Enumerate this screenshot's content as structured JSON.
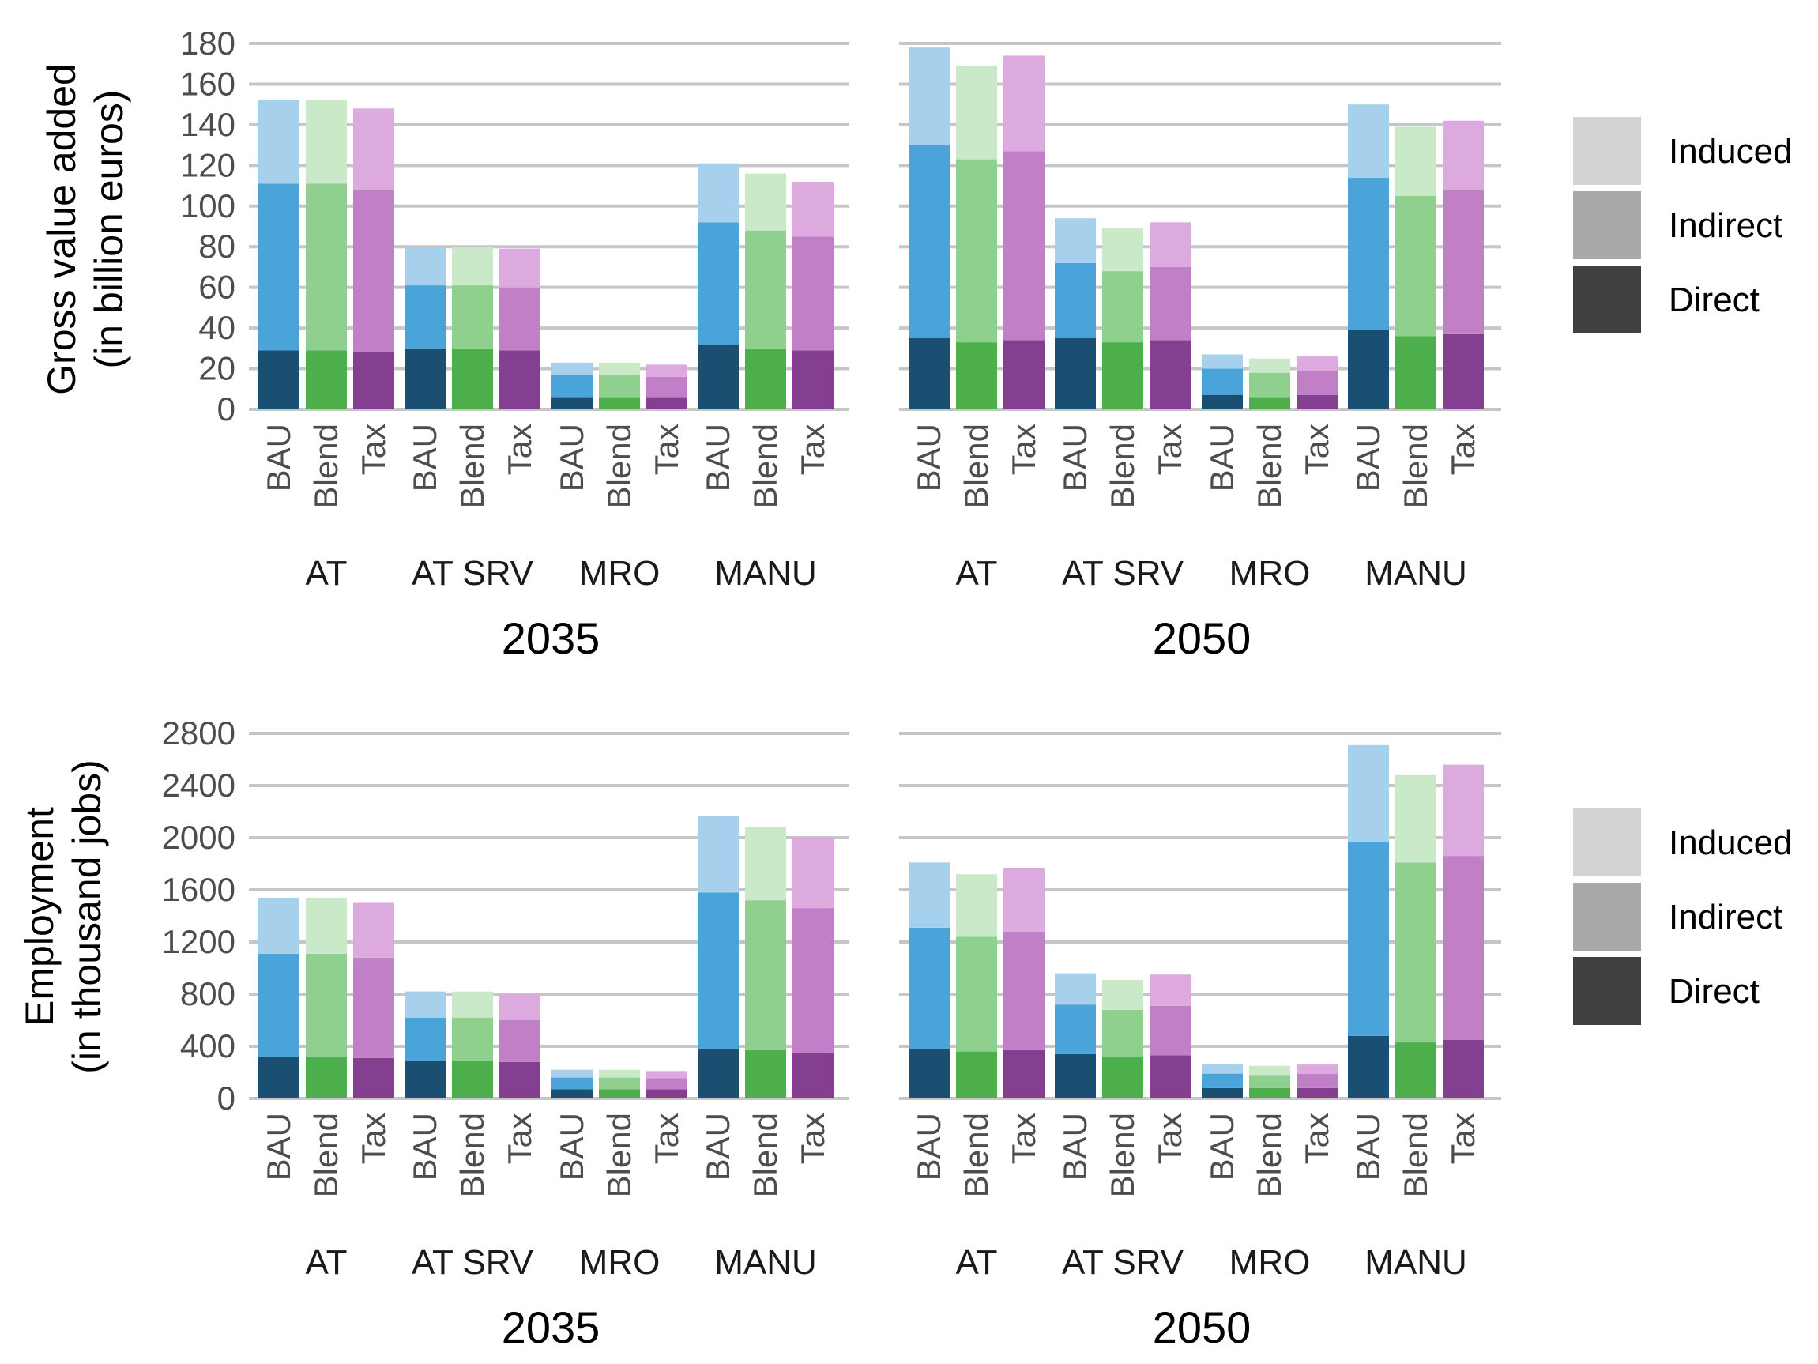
{
  "chart_data": [
    {
      "type": "bar",
      "title": "",
      "ylabel": "Gross value added",
      "ylabel_sub": "(in billion euros)",
      "ylim": [
        0,
        180
      ],
      "yticks": [
        0,
        20,
        40,
        60,
        80,
        100,
        120,
        140,
        160,
        180
      ],
      "components": [
        "Direct",
        "Indirect",
        "Induced"
      ],
      "scenarios": [
        "BAU",
        "Blend",
        "Tax"
      ],
      "categories": [
        "AT",
        "AT SRV",
        "MRO",
        "MANU"
      ],
      "panels": [
        {
          "year": "2035",
          "data": {
            "AT": {
              "BAU": [
                29,
                82,
                41
              ],
              "Blend": [
                29,
                82,
                41
              ],
              "Tax": [
                28,
                80,
                40
              ]
            },
            "AT SRV": {
              "BAU": [
                30,
                31,
                19
              ],
              "Blend": [
                30,
                31,
                19
              ],
              "Tax": [
                29,
                31,
                19
              ]
            },
            "MRO": {
              "BAU": [
                6,
                11,
                6
              ],
              "Blend": [
                6,
                11,
                6
              ],
              "Tax": [
                6,
                10,
                6
              ]
            },
            "MANU": {
              "BAU": [
                32,
                60,
                29
              ],
              "Blend": [
                30,
                58,
                28
              ],
              "Tax": [
                29,
                56,
                27
              ]
            }
          }
        },
        {
          "year": "2050",
          "data": {
            "AT": {
              "BAU": [
                35,
                95,
                48
              ],
              "Blend": [
                33,
                90,
                46
              ],
              "Tax": [
                34,
                93,
                47
              ]
            },
            "AT SRV": {
              "BAU": [
                35,
                37,
                22
              ],
              "Blend": [
                33,
                35,
                21
              ],
              "Tax": [
                34,
                36,
                22
              ]
            },
            "MRO": {
              "BAU": [
                7,
                13,
                7
              ],
              "Blend": [
                6,
                12,
                7
              ],
              "Tax": [
                7,
                12,
                7
              ]
            },
            "MANU": {
              "BAU": [
                39,
                75,
                36
              ],
              "Blend": [
                36,
                69,
                34
              ],
              "Tax": [
                37,
                71,
                34
              ]
            }
          }
        }
      ]
    },
    {
      "type": "bar",
      "title": "",
      "ylabel": "Employment",
      "ylabel_sub": "(in thousand jobs)",
      "ylim": [
        0,
        2800
      ],
      "yticks": [
        0,
        400,
        800,
        1200,
        1600,
        2000,
        2400,
        2800
      ],
      "components": [
        "Direct",
        "Indirect",
        "Induced"
      ],
      "scenarios": [
        "BAU",
        "Blend",
        "Tax"
      ],
      "categories": [
        "AT",
        "AT SRV",
        "MRO",
        "MANU"
      ],
      "panels": [
        {
          "year": "2035",
          "data": {
            "AT": {
              "BAU": [
                320,
                790,
                430
              ],
              "Blend": [
                320,
                790,
                430
              ],
              "Tax": [
                310,
                770,
                420
              ]
            },
            "AT SRV": {
              "BAU": [
                290,
                330,
                200
              ],
              "Blend": [
                290,
                330,
                200
              ],
              "Tax": [
                280,
                320,
                200
              ]
            },
            "MRO": {
              "BAU": [
                70,
                90,
                60
              ],
              "Blend": [
                70,
                90,
                60
              ],
              "Tax": [
                70,
                85,
                55
              ]
            },
            "MANU": {
              "BAU": [
                380,
                1200,
                590
              ],
              "Blend": [
                370,
                1150,
                560
              ],
              "Tax": [
                350,
                1110,
                540
              ]
            }
          }
        },
        {
          "year": "2050",
          "data": {
            "AT": {
              "BAU": [
                380,
                930,
                500
              ],
              "Blend": [
                360,
                880,
                480
              ],
              "Tax": [
                370,
                910,
                490
              ]
            },
            "AT SRV": {
              "BAU": [
                340,
                380,
                240
              ],
              "Blend": [
                320,
                360,
                230
              ],
              "Tax": [
                330,
                380,
                240
              ]
            },
            "MRO": {
              "BAU": [
                80,
                110,
                70
              ],
              "Blend": [
                80,
                100,
                70
              ],
              "Tax": [
                80,
                110,
                70
              ]
            },
            "MANU": {
              "BAU": [
                480,
                1490,
                740
              ],
              "Blend": [
                430,
                1380,
                670
              ],
              "Tax": [
                450,
                1410,
                700
              ]
            }
          }
        }
      ]
    }
  ],
  "legend": {
    "items": [
      {
        "label": "Induced",
        "color": "#d3d3d3"
      },
      {
        "label": "Indirect",
        "color": "#a9a9a9"
      },
      {
        "label": "Direct",
        "color": "#414141"
      }
    ]
  },
  "palette": {
    "BAU": {
      "Direct": "#1b4f72",
      "Indirect": "#4aa3d9",
      "Induced": "#a6d0eb"
    },
    "Blend": {
      "Direct": "#4caf4c",
      "Indirect": "#8fd08f",
      "Induced": "#c9e9c8"
    },
    "Tax": {
      "Direct": "#843f91",
      "Indirect": "#c07fc7",
      "Induced": "#dcaadf"
    }
  }
}
